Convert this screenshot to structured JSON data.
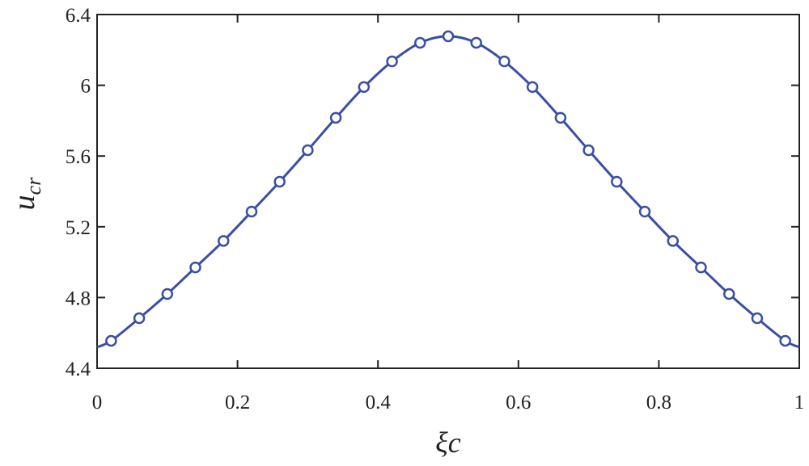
{
  "chart_data": {
    "type": "line",
    "x_label": "ξc",
    "y_label": "u",
    "y_label_sub": "cr",
    "xlim": [
      0,
      1
    ],
    "xticks": [
      0,
      0.2,
      0.4,
      0.6,
      0.8,
      1
    ],
    "ylim": [
      4.4,
      6.4
    ],
    "yticks": [
      4.4,
      4.8,
      5.2,
      5.6,
      6,
      6.4
    ],
    "series": [
      {
        "color": "#3a4fa3",
        "markers": false,
        "x": [
          0,
          0.02,
          0.06,
          0.1,
          0.14,
          0.18,
          0.22,
          0.26,
          0.3,
          0.34,
          0.38,
          0.42,
          0.46,
          0.5,
          0.54,
          0.58,
          0.62,
          0.66,
          0.7,
          0.74,
          0.78,
          0.82,
          0.86,
          0.9,
          0.94,
          0.98,
          1
        ],
        "values": [
          4.52,
          4.555,
          4.683,
          4.82,
          4.97,
          5.12,
          5.286,
          5.455,
          5.633,
          5.816,
          5.99,
          6.135,
          6.24,
          6.277,
          6.24,
          6.135,
          5.99,
          5.816,
          5.633,
          5.455,
          5.286,
          5.12,
          4.97,
          4.82,
          4.683,
          4.555,
          4.52
        ]
      },
      {
        "color": "#3a4fa3",
        "markers": true,
        "x": [
          0.02,
          0.06,
          0.1,
          0.14,
          0.18,
          0.22,
          0.26,
          0.3,
          0.34,
          0.38,
          0.42,
          0.46,
          0.5,
          0.54,
          0.58,
          0.62,
          0.66,
          0.7,
          0.74,
          0.78,
          0.82,
          0.86,
          0.9,
          0.94,
          0.98
        ],
        "values": [
          4.555,
          4.683,
          4.82,
          4.97,
          5.12,
          5.286,
          5.455,
          5.633,
          5.816,
          5.99,
          6.135,
          6.24,
          6.277,
          6.24,
          6.135,
          5.99,
          5.816,
          5.633,
          5.455,
          5.286,
          5.12,
          4.97,
          4.82,
          4.683,
          4.555
        ]
      }
    ]
  }
}
